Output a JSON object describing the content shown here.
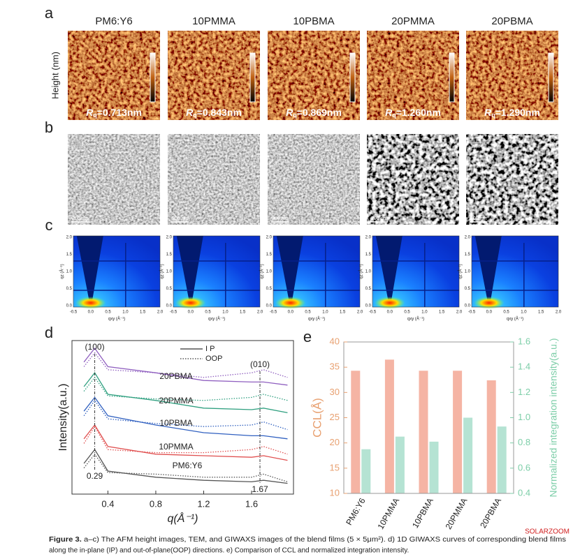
{
  "panel_labels": [
    "a",
    "b",
    "c",
    "d",
    "e"
  ],
  "samples": [
    "PM6:Y6",
    "10PMMA",
    "10PBMA",
    "20PMMA",
    "20PBMA"
  ],
  "afm": {
    "ylabel": "Height (nm)",
    "rq_symbol": "R",
    "rq_subscript": "q",
    "rq_values": [
      "=0.713nm",
      "=0.843nm",
      "=0.869nm",
      "=1.260nm",
      "=1.290nm"
    ]
  },
  "tem": {
    "scale_bar": "200 nm"
  },
  "giwaxs": {
    "xticks": [
      "-0.5",
      "0.0",
      "0.5",
      "1.0",
      "1.5",
      "2.0"
    ],
    "yticks": [
      "0.0",
      "0.5",
      "1.0",
      "1.5",
      "2.0"
    ],
    "xlabel": "qxy (Å⁻¹)",
    "ylabel": "qz (Å⁻¹)"
  },
  "chart_data": [
    {
      "type": "line",
      "x_label": "q(Å⁻¹)",
      "y_label": "Intensity(a.u.)",
      "x": [
        0.2,
        0.29,
        0.4,
        0.8,
        1.2,
        1.6,
        1.7,
        1.9
      ],
      "xlim": [
        0.1,
        1.95
      ],
      "ylim": [
        0,
        10
      ],
      "xticks": [
        0.4,
        0.8,
        1.2,
        1.6
      ],
      "legend": [
        {
          "name": "I P",
          "dash": "solid"
        },
        {
          "name": "OOP",
          "dash": "dotted"
        }
      ],
      "series": [
        {
          "name": "PM6:Y6",
          "color": "#555555",
          "ip": [
            2.0,
            2.9,
            1.5,
            1.1,
            0.9,
            0.8,
            0.9,
            0.7
          ],
          "oop": [
            1.7,
            2.6,
            1.4,
            1.3,
            1.1,
            1.1,
            1.3,
            0.8
          ]
        },
        {
          "name": "10PMMA",
          "color": "#e05050",
          "ip": [
            3.6,
            4.5,
            3.1,
            2.6,
            2.5,
            2.4,
            2.5,
            2.2
          ],
          "oop": [
            3.3,
            4.4,
            2.9,
            2.7,
            2.7,
            2.9,
            3.1,
            2.6
          ]
        },
        {
          "name": "10PBMA",
          "color": "#3060c0",
          "ip": [
            5.4,
            6.3,
            5.1,
            4.5,
            4.0,
            3.8,
            3.8,
            3.6
          ],
          "oop": [
            5.1,
            6.1,
            4.9,
            4.6,
            4.4,
            4.5,
            4.7,
            4.2
          ]
        },
        {
          "name": "20PMMA",
          "color": "#30a080",
          "ip": [
            7.0,
            7.9,
            6.5,
            6.1,
            5.6,
            5.5,
            5.6,
            5.3
          ],
          "oop": [
            6.7,
            7.6,
            6.4,
            6.2,
            6.1,
            6.3,
            6.5,
            6.1
          ]
        },
        {
          "name": "20PBMA",
          "color": "#9060c0",
          "ip": [
            8.6,
            9.5,
            8.3,
            7.9,
            7.4,
            7.3,
            7.3,
            7.1
          ],
          "oop": [
            8.3,
            9.2,
            8.1,
            7.9,
            7.6,
            7.9,
            8.1,
            7.6
          ]
        }
      ],
      "reference_lines": [
        {
          "x": 0.29,
          "peak": "(100)"
        },
        {
          "x": 1.67,
          "peak": "(010)"
        }
      ]
    },
    {
      "type": "bar",
      "categories": [
        "PM6:Y6",
        "10PMMA",
        "10PBMA",
        "20PMMA",
        "20PBMA"
      ],
      "y_label": "CCL(Å)",
      "y2_label": "Normalized integration intensity(a.u.)",
      "ylim": [
        10,
        40
      ],
      "yticks": [
        10,
        15,
        20,
        25,
        30,
        35,
        40
      ],
      "y2lim": [
        0.4,
        1.6
      ],
      "y2ticks": [
        0.4,
        0.6,
        0.8,
        {
          "value": 1,
          "label": "1.0"
        },
        1.2,
        1.4,
        1.6
      ],
      "y_color": "#e8a070",
      "y2_color": "#7dcea8",
      "series": [
        {
          "color": "#f5b4a4",
          "values": [
            34.3,
            36.5,
            34.3,
            34.3,
            32.4
          ]
        },
        {
          "color": "#b5e3d3",
          "values": [
            0.75,
            0.85,
            0.81,
            1.0,
            0.93
          ],
          "axis": "y2"
        }
      ]
    }
  ],
  "caption": {
    "label": "Figure 3.",
    "lines": [
      " a–c) The AFM height images, TEM, and GIWAXS images of the blend films (5 × 5μm²). d) 1D GIWAXS curves of corresponding blend films",
      "along the in-plane (IP) and out-of-plane(OOP) directions. e) Comparison of CCL and normalized integration intensity."
    ]
  },
  "watermark": "SOLARZOOM"
}
